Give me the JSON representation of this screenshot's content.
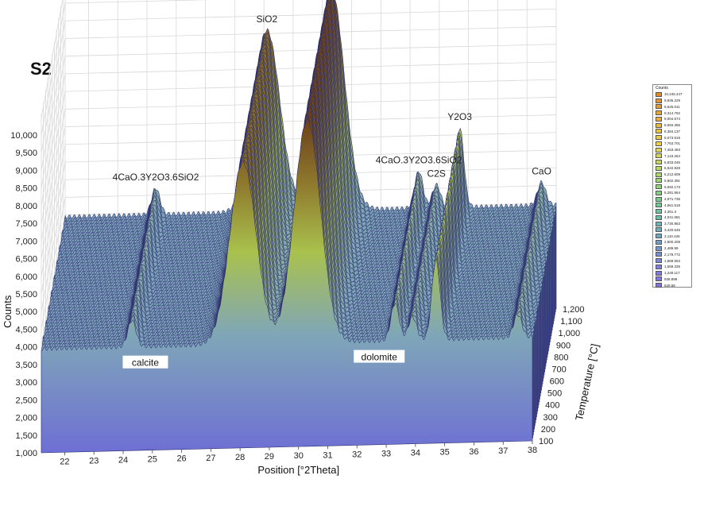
{
  "panel_label": "S2",
  "chart_data": {
    "type": "surface3d",
    "xlabel": "Position [°2Theta]",
    "ylabel": "Temperature [°C]",
    "zlabel": "Counts",
    "x_ticks": [
      "22",
      "23",
      "24",
      "25",
      "26",
      "27",
      "28",
      "29",
      "30",
      "31",
      "32",
      "33",
      "34",
      "35",
      "36",
      "37",
      "38"
    ],
    "y_ticks": [
      "100",
      "200",
      "300",
      "400",
      "500",
      "600",
      "700",
      "800",
      "900",
      "1,000",
      "1,100",
      "1,200"
    ],
    "z_ticks": [
      "1,000",
      "1,500",
      "2,000",
      "2,500",
      "3,000",
      "3,500",
      "4,000",
      "4,500",
      "5,000",
      "5,500",
      "6,000",
      "6,500",
      "7,000",
      "7,500",
      "8,000",
      "8,500",
      "9,000",
      "9,500",
      "10,000"
    ],
    "xlim": [
      21.2,
      38
    ],
    "ylim": [
      100,
      1200
    ],
    "zlim": [
      1000,
      10000
    ],
    "baseline_counts": 3950,
    "peaks": [
      {
        "label": "4CaO.3Y2O3.6SiO2",
        "position": 24.3,
        "counts": 4700,
        "t_from": 100,
        "t_to": 1200
      },
      {
        "label": "SiO2",
        "position": 28.1,
        "counts": 9100,
        "t_from": 100,
        "t_to": 1200
      },
      {
        "label": "Y2O3",
        "position": 30.3,
        "counts": 10250,
        "t_from": 100,
        "t_to": 1200
      },
      {
        "label": "4CaO.3Y2O3.6SiO2",
        "position": 33.3,
        "counts": 5000,
        "t_from": 100,
        "t_to": 1200
      },
      {
        "label": "C2S",
        "position": 33.9,
        "counts": 4600,
        "t_from": 100,
        "t_to": 1200
      },
      {
        "label": "Y2O3",
        "position": 34.7,
        "counts": 6200,
        "t_from": 100,
        "t_to": 1200
      },
      {
        "label": "CaO",
        "position": 37.5,
        "counts": 4600,
        "t_from": 100,
        "t_to": 1200
      }
    ],
    "phase_regions": [
      {
        "label": "calcite",
        "position": 24.5
      },
      {
        "label": "dolomite",
        "position": 32.5
      }
    ],
    "grid": true,
    "colorbar": {
      "title": "Counts",
      "values": [
        "10,245.447",
        "9,935.229",
        "9,625.011",
        "9,314.792",
        "9,004.574",
        "8,694.356",
        "8,384.137",
        "8,073.919",
        "7,763.701",
        "7,453.483",
        "7,143.264",
        "6,833.046",
        "6,522.828",
        "6,212.609",
        "5,902.391",
        "5,592.173",
        "5,281.954",
        "4,971.736",
        "4,661.518",
        "4,351.3",
        "4,041.081",
        "3,730.863",
        "3,420.645",
        "3,110.426",
        "2,800.208",
        "2,489.99",
        "2,179.772",
        "1,869.553",
        "1,559.335",
        "1,249.117",
        "938.898",
        "628.68"
      ],
      "colors": [
        "#e08a30",
        "#e29432",
        "#e49d34",
        "#e6a637",
        "#e8b03a",
        "#e9b93d",
        "#eac241",
        "#ebca46",
        "#ecd24b",
        "#e2d650",
        "#d4d656",
        "#c6d65c",
        "#b8d663",
        "#aad66a",
        "#9cd671",
        "#8ed478",
        "#80d07f",
        "#76cc88",
        "#70c892",
        "#6ec39c",
        "#6dbda6",
        "#6db6b0",
        "#6eaeba",
        "#70a6c2",
        "#729ec9",
        "#7596cf",
        "#788ed4",
        "#7b86d8",
        "#7d7fdb",
        "#7f79dd",
        "#8074de",
        "#8270df"
      ]
    }
  }
}
